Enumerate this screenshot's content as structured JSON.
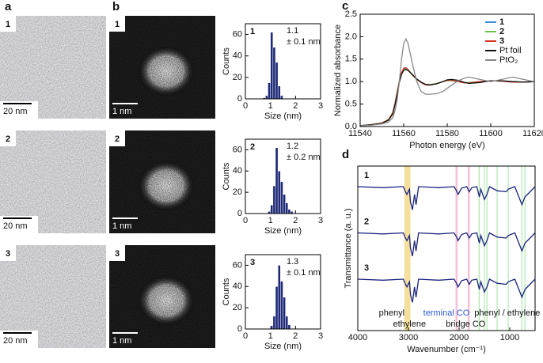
{
  "panel_labels": [
    "a",
    "b",
    "c",
    "d"
  ],
  "tem_images": [
    {
      "label": "1",
      "scale": "20 nm"
    },
    {
      "label": "2",
      "scale": "20 nm"
    },
    {
      "label": "3",
      "scale": "20 nm"
    }
  ],
  "haadf_images": [
    {
      "label": "1",
      "scale": "1 nm"
    },
    {
      "label": "2",
      "scale": "1 nm"
    },
    {
      "label": "3",
      "scale": "1 nm"
    }
  ],
  "chart_data": [
    {
      "type": "histogram",
      "label": "1",
      "annotation": [
        "1.1",
        "± 0.1 nm"
      ],
      "xlabel": "Size (nm)",
      "ylabel": "Counts",
      "bins": [
        0.7,
        0.8,
        0.9,
        1.0,
        1.1,
        1.2,
        1.3,
        1.4,
        1.5
      ],
      "values": [
        1,
        3,
        15,
        62,
        48,
        34,
        12,
        3
      ],
      "color": "#1f2a78",
      "xlim": [
        0,
        3
      ],
      "xticks": [
        0,
        1,
        2,
        3
      ],
      "ylim": [
        0,
        70
      ],
      "yticks": [
        0,
        20,
        40,
        60
      ]
    },
    {
      "type": "histogram",
      "label": "2",
      "annotation": [
        "1.2",
        "± 0.2 nm"
      ],
      "xlabel": "Size (nm)",
      "ylabel": "Counts",
      "bins": [
        0.9,
        1.0,
        1.1,
        1.2,
        1.3,
        1.4,
        1.5,
        1.6,
        1.7,
        1.8,
        1.9
      ],
      "values": [
        2,
        8,
        26,
        62,
        40,
        30,
        18,
        10,
        4,
        2
      ],
      "color": "#1f2a78",
      "xlim": [
        0,
        3
      ],
      "xticks": [
        0,
        1,
        2,
        3
      ],
      "ylim": [
        0,
        70
      ],
      "yticks": [
        0,
        20,
        40,
        60
      ]
    },
    {
      "type": "histogram",
      "label": "3",
      "annotation": [
        "1.3",
        "± 0.1 nm"
      ],
      "xlabel": "Size (nm)",
      "ylabel": "Counts",
      "bins": [
        1.0,
        1.1,
        1.2,
        1.3,
        1.4,
        1.5,
        1.6,
        1.7,
        1.8
      ],
      "values": [
        3,
        12,
        40,
        60,
        45,
        30,
        12,
        4
      ],
      "color": "#1f2a78",
      "xlim": [
        0,
        3
      ],
      "xticks": [
        0,
        1,
        2,
        3
      ],
      "ylim": [
        0,
        70
      ],
      "yticks": [
        0,
        20,
        40,
        60
      ]
    },
    {
      "type": "line",
      "xlabel": "Photon energy (eV)",
      "ylabel": "Normalized absorbance",
      "legend": "upper right",
      "x": [
        11540,
        11545,
        11550,
        11553,
        11555,
        11556,
        11557,
        11558,
        11559,
        11560,
        11561,
        11562,
        11564,
        11566,
        11568,
        11570,
        11572,
        11575,
        11578,
        11580,
        11582,
        11585,
        11588,
        11590,
        11595,
        11600,
        11605,
        11610,
        11615,
        11620
      ],
      "series": [
        {
          "name": "1",
          "color": "#3a8fd6",
          "values": [
            0.02,
            0.04,
            0.08,
            0.15,
            0.3,
            0.5,
            0.75,
            1.0,
            1.18,
            1.28,
            1.3,
            1.27,
            1.15,
            1.05,
            0.98,
            0.93,
            0.92,
            0.95,
            1.0,
            1.03,
            1.03,
            1.0,
            0.97,
            0.97,
            1.0,
            1.02,
            1.01,
            0.99,
            0.99,
            1.0
          ]
        },
        {
          "name": "2",
          "color": "#6cc04a",
          "values": [
            0.02,
            0.04,
            0.08,
            0.16,
            0.32,
            0.52,
            0.78,
            1.02,
            1.2,
            1.27,
            1.28,
            1.25,
            1.14,
            1.04,
            0.98,
            0.94,
            0.93,
            0.96,
            1.0,
            1.02,
            1.02,
            1.0,
            0.98,
            0.98,
            1.0,
            1.02,
            1.01,
            1.0,
            0.99,
            1.0
          ]
        },
        {
          "name": "3",
          "color": "#d6332a",
          "values": [
            0.02,
            0.04,
            0.08,
            0.15,
            0.31,
            0.51,
            0.76,
            1.01,
            1.2,
            1.3,
            1.31,
            1.27,
            1.15,
            1.05,
            0.98,
            0.93,
            0.92,
            0.95,
            1.0,
            1.03,
            1.03,
            1.0,
            0.97,
            0.97,
            1.0,
            1.02,
            1.01,
            0.99,
            0.99,
            1.0
          ]
        },
        {
          "name": "Pt foil",
          "color": "#111111",
          "values": [
            0.02,
            0.04,
            0.07,
            0.14,
            0.28,
            0.48,
            0.72,
            0.98,
            1.16,
            1.25,
            1.27,
            1.25,
            1.16,
            1.06,
            0.99,
            0.94,
            0.93,
            0.95,
            1.0,
            1.04,
            1.05,
            1.03,
            0.98,
            0.96,
            0.98,
            1.02,
            1.02,
            1.0,
            0.99,
            1.0
          ]
        },
        {
          "name": "PtO₂",
          "color": "#888888",
          "values": [
            0.02,
            0.03,
            0.06,
            0.1,
            0.2,
            0.35,
            0.6,
            1.0,
            1.5,
            1.85,
            1.95,
            1.85,
            1.4,
            1.0,
            0.78,
            0.72,
            0.72,
            0.73,
            0.78,
            0.85,
            0.92,
            1.02,
            1.08,
            1.1,
            1.05,
            1.0,
            1.05,
            1.1,
            1.05,
            1.0
          ]
        }
      ],
      "xlim": [
        11540,
        11620
      ],
      "xticks": [
        11540,
        11560,
        11580,
        11600,
        11620
      ],
      "ylim": [
        0,
        2.5
      ],
      "yticks": [
        {
          "value": 0,
          "label": "0.0"
        },
        {
          "value": 0.5,
          "label": "0.5"
        },
        {
          "value": 1,
          "label": "1.0"
        },
        {
          "value": 1.5,
          "label": "1.5"
        },
        {
          "value": 2,
          "label": "2.0"
        },
        {
          "value": 2.5,
          "label": "2.5"
        }
      ]
    },
    {
      "type": "line",
      "xlabel": "Wavenumber (cm⁻¹)",
      "ylabel": "Transmittance (a. u.)",
      "x": [
        4000,
        3500,
        3100,
        3060,
        3030,
        2980,
        2960,
        2920,
        2880,
        2850,
        2800,
        2400,
        2100,
        2050,
        2020,
        1950,
        1850,
        1800,
        1750,
        1650,
        1600,
        1570,
        1500,
        1450,
        1400,
        1250,
        1070,
        1030,
        900,
        760,
        700,
        500
      ],
      "series": [
        {
          "name": "1",
          "color": "#1a237e",
          "values": [
            3.0,
            2.98,
            3.0,
            2.9,
            2.85,
            2.95,
            2.7,
            2.55,
            2.85,
            2.65,
            3.0,
            2.98,
            3.0,
            2.92,
            2.85,
            2.97,
            3.0,
            2.9,
            2.98,
            3.0,
            2.8,
            2.95,
            2.75,
            2.85,
            3.0,
            2.92,
            2.9,
            2.95,
            3.0,
            2.65,
            2.8,
            3.0
          ]
        },
        {
          "name": "2",
          "color": "#1a237e",
          "values": [
            2.1,
            2.08,
            2.1,
            2.0,
            1.95,
            2.05,
            1.8,
            1.65,
            1.95,
            1.75,
            2.1,
            2.08,
            2.1,
            2.02,
            1.95,
            2.07,
            2.1,
            2.0,
            2.08,
            2.1,
            1.9,
            2.05,
            1.85,
            1.95,
            2.1,
            2.02,
            2.0,
            2.05,
            2.1,
            1.75,
            1.9,
            2.1
          ]
        },
        {
          "name": "3",
          "color": "#1a237e",
          "values": [
            1.2,
            1.18,
            1.2,
            1.1,
            1.05,
            1.15,
            0.9,
            0.75,
            1.05,
            0.85,
            1.2,
            1.18,
            1.2,
            1.12,
            1.05,
            1.17,
            1.2,
            1.1,
            1.18,
            1.2,
            1.0,
            1.15,
            0.95,
            1.05,
            1.2,
            1.12,
            1.1,
            1.15,
            1.2,
            0.85,
            1.0,
            1.2
          ]
        }
      ],
      "highlights": [
        {
          "from": 3080,
          "to": 2960,
          "color": "#f3d98a"
        },
        {
          "from": 2070,
          "to": 2030,
          "color": "#f5b5d0"
        },
        {
          "from": 1830,
          "to": 1790,
          "color": "#f5b5d0"
        },
        {
          "from": 1615,
          "to": 1590,
          "color": "#a8e6a8"
        },
        {
          "from": 1510,
          "to": 1490,
          "color": "#a8e6a8"
        },
        {
          "from": 1460,
          "to": 1440,
          "color": "#a8e6a8"
        },
        {
          "from": 1260,
          "to": 1240,
          "color": "#a8e6a8"
        },
        {
          "from": 1040,
          "to": 1020,
          "color": "#a8e6a8"
        },
        {
          "from": 770,
          "to": 750,
          "color": "#a8e6a8"
        },
        {
          "from": 710,
          "to": 690,
          "color": "#a8e6a8"
        }
      ],
      "annotations": [
        "phenyl",
        "ethylene",
        "terminal CO",
        "bridge CO",
        "phenyl / ethylene"
      ],
      "xlim": [
        4000,
        500
      ],
      "xticks": [
        4000,
        3000,
        2000,
        1000
      ],
      "ylim": [
        0.2,
        3.4
      ]
    }
  ]
}
